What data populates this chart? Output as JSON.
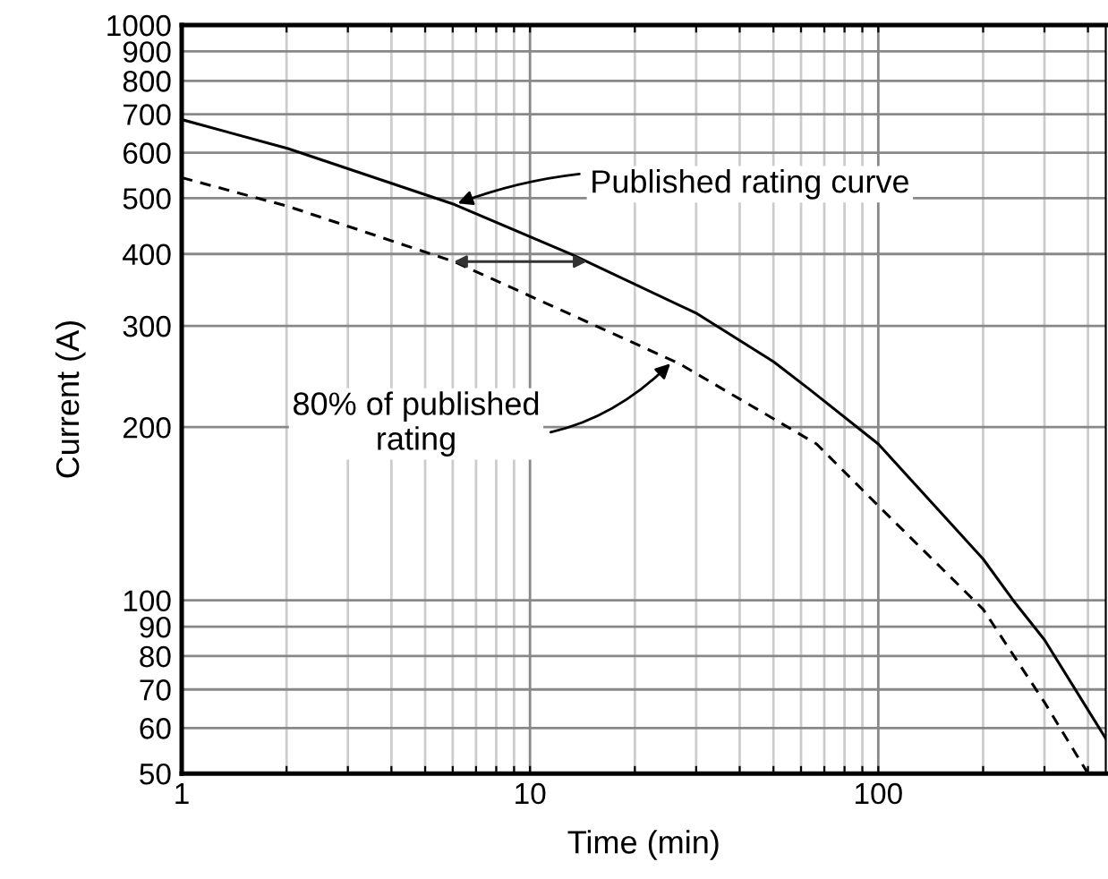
{
  "chart_data": {
    "type": "line",
    "xlabel": "Time (min)",
    "ylabel": "Current (A)",
    "log": "xy",
    "xlim": [
      1,
      450
    ],
    "ylim": [
      50,
      1000
    ],
    "xticks": [
      1,
      {
        "value": 2,
        "label": null
      },
      {
        "value": 3,
        "label": null
      },
      {
        "value": 4,
        "label": null
      },
      {
        "value": 5,
        "label": null
      },
      {
        "value": 6,
        "label": null
      },
      {
        "value": 7,
        "label": null
      },
      {
        "value": 8,
        "label": null
      },
      {
        "value": 9,
        "label": null
      },
      10,
      {
        "value": 20,
        "label": null
      },
      {
        "value": 30,
        "label": null
      },
      {
        "value": 40,
        "label": null
      },
      {
        "value": 50,
        "label": null
      },
      {
        "value": 60,
        "label": null
      },
      {
        "value": 70,
        "label": null
      },
      {
        "value": 80,
        "label": null
      },
      {
        "value": 90,
        "label": null
      },
      100,
      {
        "value": 200,
        "label": null
      },
      {
        "value": 300,
        "label": null
      },
      {
        "value": 400,
        "label": null
      }
    ],
    "yticks": [
      50,
      60,
      70,
      80,
      90,
      100,
      200,
      300,
      400,
      500,
      600,
      700,
      800,
      900,
      1000
    ],
    "grid": true,
    "marker": "none",
    "series": [
      {
        "color": "#000000",
        "line_style": "solid",
        "x": [
          1,
          2.02,
          6.05,
          13.2,
          30.2,
          50,
          63.3,
          100,
          200,
          244,
          300,
          450
        ],
        "values": [
          685,
          610,
          488,
          399,
          315,
          260,
          233,
          187,
          118,
          100,
          85.4,
          57.5
        ]
      },
      {
        "color": "#000000",
        "line_style": "dashed",
        "x": [
          1,
          2.02,
          6.05,
          26.8,
          66.5,
          100,
          200,
          300,
          400
        ],
        "values": [
          543,
          484,
          388,
          258,
          187,
          146,
          96.5,
          66.5,
          50
        ]
      }
    ],
    "annotations": [
      {
        "text": "Published rating curve",
        "x": 6.2,
        "y": 490
      },
      {
        "text": "80% of published\nrating",
        "x": 25.3,
        "y": 258
      }
    ]
  }
}
